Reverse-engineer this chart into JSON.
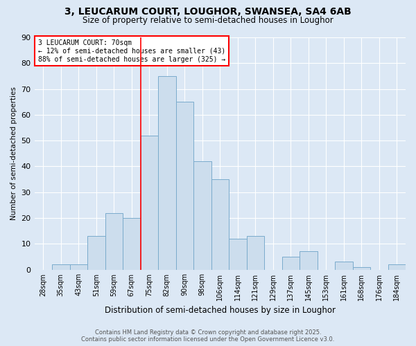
{
  "title_line1": "3, LEUCARUM COURT, LOUGHOR, SWANSEA, SA4 6AB",
  "title_line2": "Size of property relative to semi-detached houses in Loughor",
  "xlabel": "Distribution of semi-detached houses by size in Loughor",
  "ylabel": "Number of semi-detached properties",
  "categories": [
    "28sqm",
    "35sqm",
    "43sqm",
    "51sqm",
    "59sqm",
    "67sqm",
    "75sqm",
    "82sqm",
    "90sqm",
    "98sqm",
    "106sqm",
    "114sqm",
    "121sqm",
    "129sqm",
    "137sqm",
    "145sqm",
    "153sqm",
    "161sqm",
    "168sqm",
    "176sqm",
    "184sqm"
  ],
  "values": [
    0,
    2,
    2,
    13,
    22,
    20,
    52,
    75,
    65,
    42,
    35,
    12,
    13,
    0,
    5,
    7,
    0,
    3,
    1,
    0,
    2
  ],
  "bar_color": "#ccdded",
  "bar_edge_color": "#7aabcc",
  "property_label": "3 LEUCARUM COURT: 70sqm",
  "pct_smaller": 12,
  "count_smaller": 43,
  "pct_larger": 88,
  "count_larger": 325,
  "vline_x": 6,
  "ylim": [
    0,
    90
  ],
  "yticks": [
    0,
    10,
    20,
    30,
    40,
    50,
    60,
    70,
    80,
    90
  ],
  "footer_line1": "Contains HM Land Registry data © Crown copyright and database right 2025.",
  "footer_line2": "Contains public sector information licensed under the Open Government Licence v3.0.",
  "background_color": "#dce8f5",
  "plot_background": "#dce8f5",
  "grid_color": "#ffffff"
}
